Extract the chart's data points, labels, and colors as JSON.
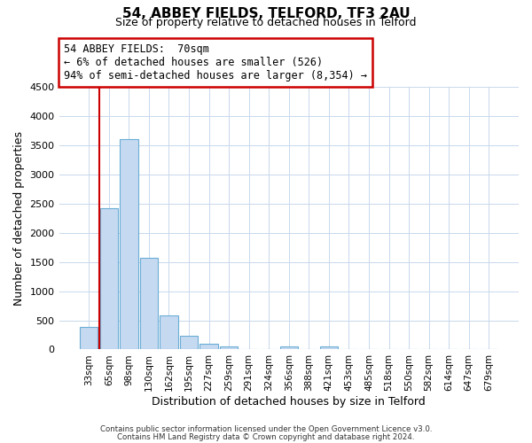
{
  "title": "54, ABBEY FIELDS, TELFORD, TF3 2AU",
  "subtitle": "Size of property relative to detached houses in Telford",
  "xlabel": "Distribution of detached houses by size in Telford",
  "ylabel": "Number of detached properties",
  "bar_labels": [
    "33sqm",
    "65sqm",
    "98sqm",
    "130sqm",
    "162sqm",
    "195sqm",
    "227sqm",
    "259sqm",
    "291sqm",
    "324sqm",
    "356sqm",
    "388sqm",
    "421sqm",
    "453sqm",
    "485sqm",
    "518sqm",
    "550sqm",
    "582sqm",
    "614sqm",
    "647sqm",
    "679sqm"
  ],
  "bar_values": [
    380,
    2420,
    3600,
    1570,
    590,
    240,
    100,
    60,
    0,
    0,
    60,
    0,
    50,
    0,
    0,
    0,
    0,
    0,
    0,
    0,
    0
  ],
  "bar_color": "#c5d9f1",
  "bar_edgecolor": "#6baed6",
  "vline_x": 0.5,
  "vline_color": "#cc0000",
  "ylim": [
    0,
    4500
  ],
  "yticks": [
    0,
    500,
    1000,
    1500,
    2000,
    2500,
    3000,
    3500,
    4000,
    4500
  ],
  "annotation_title": "54 ABBEY FIELDS:  70sqm",
  "annotation_line1": "← 6% of detached houses are smaller (526)",
  "annotation_line2": "94% of semi-detached houses are larger (8,354) →",
  "annotation_box_color": "#ffffff",
  "annotation_box_edgecolor": "#cc0000",
  "footer_line1": "Contains HM Land Registry data © Crown copyright and database right 2024.",
  "footer_line2": "Contains public sector information licensed under the Open Government Licence v3.0.",
  "background_color": "#ffffff",
  "grid_color": "#c8d8ec"
}
